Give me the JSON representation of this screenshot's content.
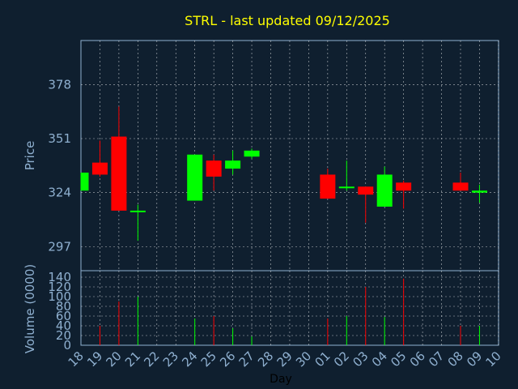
{
  "chart_data": {
    "type": "candlestick",
    "title": "STRL - last updated 09/12/2025",
    "price_panel": {
      "ylabel": "Price",
      "yticks": [
        297,
        324,
        351,
        378
      ],
      "ylim": [
        285,
        400
      ]
    },
    "volume_panel": {
      "ylabel": "Volume (0000)",
      "yticks": [
        0,
        20,
        40,
        60,
        80,
        100,
        120,
        140
      ],
      "ylim": [
        0,
        140
      ]
    },
    "xlabel": "Day",
    "x_tick_labels": [
      "18",
      "19",
      "20",
      "21",
      "22",
      "23",
      "24",
      "25",
      "26",
      "27",
      "28",
      "29",
      "30",
      "01",
      "02",
      "03",
      "04",
      "05",
      "06",
      "07",
      "08",
      "09",
      "10"
    ],
    "candles": [
      {
        "x": 0.0,
        "open": 325,
        "close": 334,
        "high": 334,
        "low": 325,
        "volume": 0
      },
      {
        "x": 1.0,
        "open": 339,
        "close": 333,
        "high": 350,
        "low": 332,
        "volume": 40
      },
      {
        "x": 2.0,
        "open": 352,
        "close": 315,
        "high": 367,
        "low": 315,
        "volume": 90
      },
      {
        "x": 3.0,
        "open": 315,
        "close": 315,
        "high": 318,
        "low": 300,
        "volume": 100
      },
      {
        "x": 6.0,
        "open": 320,
        "close": 343,
        "high": 343,
        "low": 320,
        "volume": 55
      },
      {
        "x": 7.0,
        "open": 340,
        "close": 332,
        "high": 343,
        "low": 325,
        "volume": 60
      },
      {
        "x": 8.0,
        "open": 336,
        "close": 340,
        "high": 345,
        "low": 333,
        "volume": 35
      },
      {
        "x": 9.0,
        "open": 342,
        "close": 345,
        "high": 346,
        "low": 341,
        "volume": 18
      },
      {
        "x": 13.0,
        "open": 333,
        "close": 321,
        "high": 336,
        "low": 321,
        "volume": 55
      },
      {
        "x": 14.0,
        "open": 327,
        "close": 327,
        "high": 340,
        "low": 325,
        "volume": 60
      },
      {
        "x": 15.0,
        "open": 327,
        "close": 323,
        "high": 327,
        "low": 309,
        "volume": 120
      },
      {
        "x": 16.0,
        "open": 317,
        "close": 333,
        "high": 337,
        "low": 317,
        "volume": 58
      },
      {
        "x": 17.0,
        "open": 329,
        "close": 325,
        "high": 330,
        "low": 316,
        "volume": 137
      },
      {
        "x": 20.0,
        "open": 329,
        "close": 325,
        "high": 334,
        "low": 325,
        "volume": 40
      },
      {
        "x": 21.0,
        "open": 324,
        "close": 325,
        "high": 328,
        "low": 319,
        "volume": 40
      }
    ],
    "colors": {
      "up": "#00ff00",
      "down": "#ff0000",
      "background": "#0f1f2f",
      "grid": "#ffffff",
      "axis_text": "#8fb0d0",
      "title": "#ffff00",
      "xlabel": "#000000",
      "frame": "#8fb0d0"
    },
    "grid": true
  }
}
